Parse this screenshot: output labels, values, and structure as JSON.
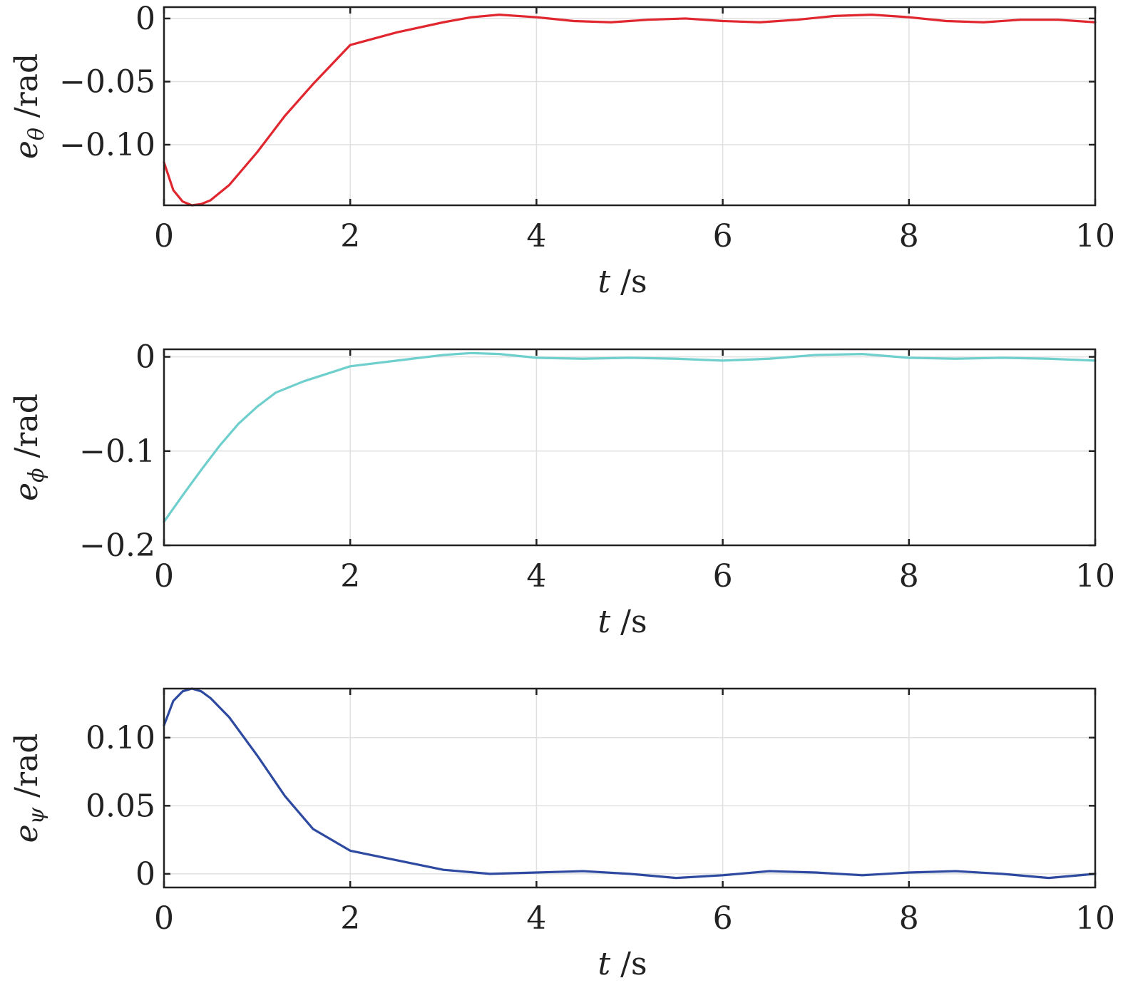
{
  "chart_data": [
    {
      "type": "line",
      "xlabel": {
        "var": "t",
        "unit": " /s"
      },
      "ylabel": {
        "var": "e",
        "sub": "θ",
        "unit": " /rad"
      },
      "xlim": [
        0,
        10
      ],
      "ylim": [
        -0.148,
        0.009
      ],
      "xticks": [
        0,
        2,
        4,
        6,
        8,
        10
      ],
      "xtick_labels": [
        "0",
        "2",
        "4",
        "6",
        "8",
        "10"
      ],
      "yticks": [
        0,
        -0.05,
        -0.1
      ],
      "ytick_labels": [
        "0",
        "−0.05",
        "−0.10"
      ],
      "grid": true,
      "series": [
        {
          "color": "#e0262e",
          "x": [
            0,
            0.1,
            0.2,
            0.3,
            0.4,
            0.5,
            0.7,
            1.0,
            1.3,
            1.6,
            2.0,
            2.5,
            3.0,
            3.3,
            3.6,
            4.0,
            4.4,
            4.8,
            5.2,
            5.6,
            6.0,
            6.4,
            6.8,
            7.2,
            7.6,
            8.0,
            8.4,
            8.8,
            9.2,
            9.6,
            10.0
          ],
          "y": [
            -0.114,
            -0.136,
            -0.145,
            -0.148,
            -0.147,
            -0.144,
            -0.132,
            -0.106,
            -0.077,
            -0.052,
            -0.021,
            -0.011,
            -0.003,
            0.001,
            0.003,
            0.001,
            -0.002,
            -0.003,
            -0.001,
            0.0,
            -0.002,
            -0.003,
            -0.001,
            0.002,
            0.003,
            0.001,
            -0.002,
            -0.003,
            -0.001,
            -0.001,
            -0.003
          ]
        }
      ]
    },
    {
      "type": "line",
      "xlabel": {
        "var": "t",
        "unit": " /s"
      },
      "ylabel": {
        "var": "e",
        "sub": "ϕ",
        "unit": " /rad"
      },
      "xlim": [
        0,
        10
      ],
      "ylim": [
        -0.2,
        0.008
      ],
      "xticks": [
        0,
        2,
        4,
        6,
        8,
        10
      ],
      "xtick_labels": [
        "0",
        "2",
        "4",
        "6",
        "8",
        "10"
      ],
      "yticks": [
        0,
        -0.1,
        -0.2
      ],
      "ytick_labels": [
        "0",
        "−0.1",
        "−0.2"
      ],
      "grid": true,
      "series": [
        {
          "color": "#6ecfcd",
          "x": [
            0,
            0.2,
            0.4,
            0.6,
            0.8,
            1.0,
            1.2,
            1.5,
            2.0,
            2.5,
            3.0,
            3.3,
            3.6,
            4.0,
            4.5,
            5.0,
            5.5,
            6.0,
            6.5,
            7.0,
            7.5,
            8.0,
            8.5,
            9.0,
            9.5,
            10.0
          ],
          "y": [
            -0.175,
            -0.147,
            -0.12,
            -0.094,
            -0.071,
            -0.053,
            -0.038,
            -0.026,
            -0.01,
            -0.004,
            0.002,
            0.004,
            0.003,
            -0.001,
            -0.002,
            -0.001,
            -0.002,
            -0.004,
            -0.002,
            0.002,
            0.003,
            -0.001,
            -0.002,
            -0.001,
            -0.002,
            -0.004
          ]
        }
      ]
    },
    {
      "type": "line",
      "xlabel": {
        "var": "t",
        "unit": " /s"
      },
      "ylabel": {
        "var": "e",
        "sub": "ψ",
        "unit": " /rad"
      },
      "xlim": [
        0,
        10
      ],
      "ylim": [
        -0.01,
        0.136
      ],
      "xticks": [
        0,
        2,
        4,
        6,
        8,
        10
      ],
      "xtick_labels": [
        "0",
        "2",
        "4",
        "6",
        "8",
        "10"
      ],
      "yticks": [
        0,
        0.05,
        0.1
      ],
      "ytick_labels": [
        "0",
        "0.05",
        "0.10"
      ],
      "grid": true,
      "series": [
        {
          "color": "#2d4aa0",
          "x": [
            0,
            0.1,
            0.2,
            0.3,
            0.4,
            0.5,
            0.7,
            1.0,
            1.3,
            1.6,
            2.0,
            2.5,
            3.0,
            3.5,
            4.0,
            4.5,
            5.0,
            5.5,
            6.0,
            6.5,
            7.0,
            7.5,
            8.0,
            8.5,
            9.0,
            9.5,
            10.0
          ],
          "y": [
            0.109,
            0.127,
            0.134,
            0.136,
            0.134,
            0.129,
            0.115,
            0.087,
            0.057,
            0.033,
            0.017,
            0.01,
            0.003,
            0.0,
            0.001,
            0.002,
            0.0,
            -0.003,
            -0.001,
            0.002,
            0.001,
            -0.001,
            0.001,
            0.002,
            0.0,
            -0.003,
            0.0
          ]
        }
      ]
    }
  ]
}
